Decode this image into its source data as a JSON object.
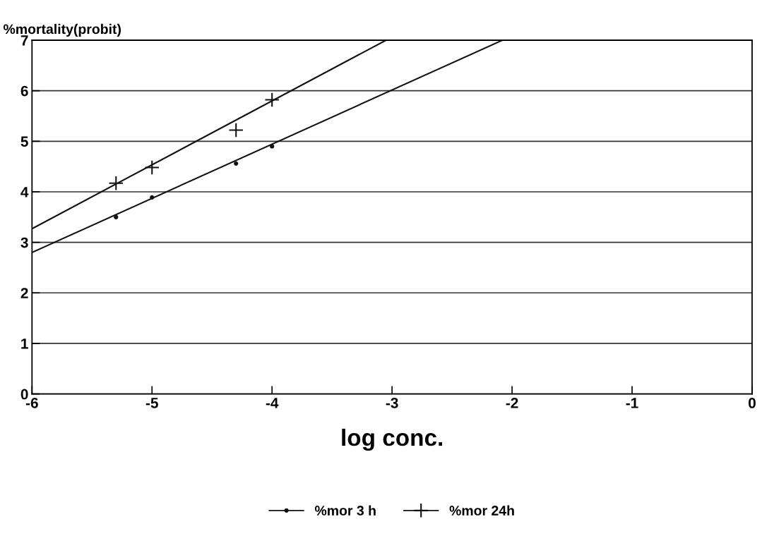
{
  "chart_data": {
    "type": "scatter",
    "ylabel": "%mortality(probit)",
    "xlabel": "log conc.",
    "xlim": [
      -6,
      0
    ],
    "ylim": [
      0,
      7
    ],
    "xticks": [
      -6,
      -5,
      -4,
      -3,
      -2,
      -1,
      0
    ],
    "yticks": [
      0,
      1,
      2,
      3,
      4,
      5,
      6,
      7
    ],
    "grid": "y",
    "legend": "bottom",
    "series": [
      {
        "name": "%mor 3 h",
        "marker": "circle",
        "color": "#111111",
        "x": [
          -5.3,
          -5,
          -4.3,
          -4
        ],
        "values": [
          3.5,
          3.89,
          4.56,
          4.9
        ]
      },
      {
        "name": "%mor 24h",
        "marker": "cross",
        "color": "#111111",
        "x": [
          -5.3,
          -5,
          -4.3,
          -4
        ],
        "values": [
          4.17,
          4.48,
          5.22,
          5.82
        ]
      },
      {
        "type": "line",
        "color": "#111111",
        "x": [
          -6,
          -2.08
        ],
        "values": [
          2.8,
          7
        ]
      },
      {
        "type": "line",
        "color": "#111111",
        "x": [
          -6,
          -3.05
        ],
        "values": [
          3.27,
          7
        ]
      }
    ]
  }
}
